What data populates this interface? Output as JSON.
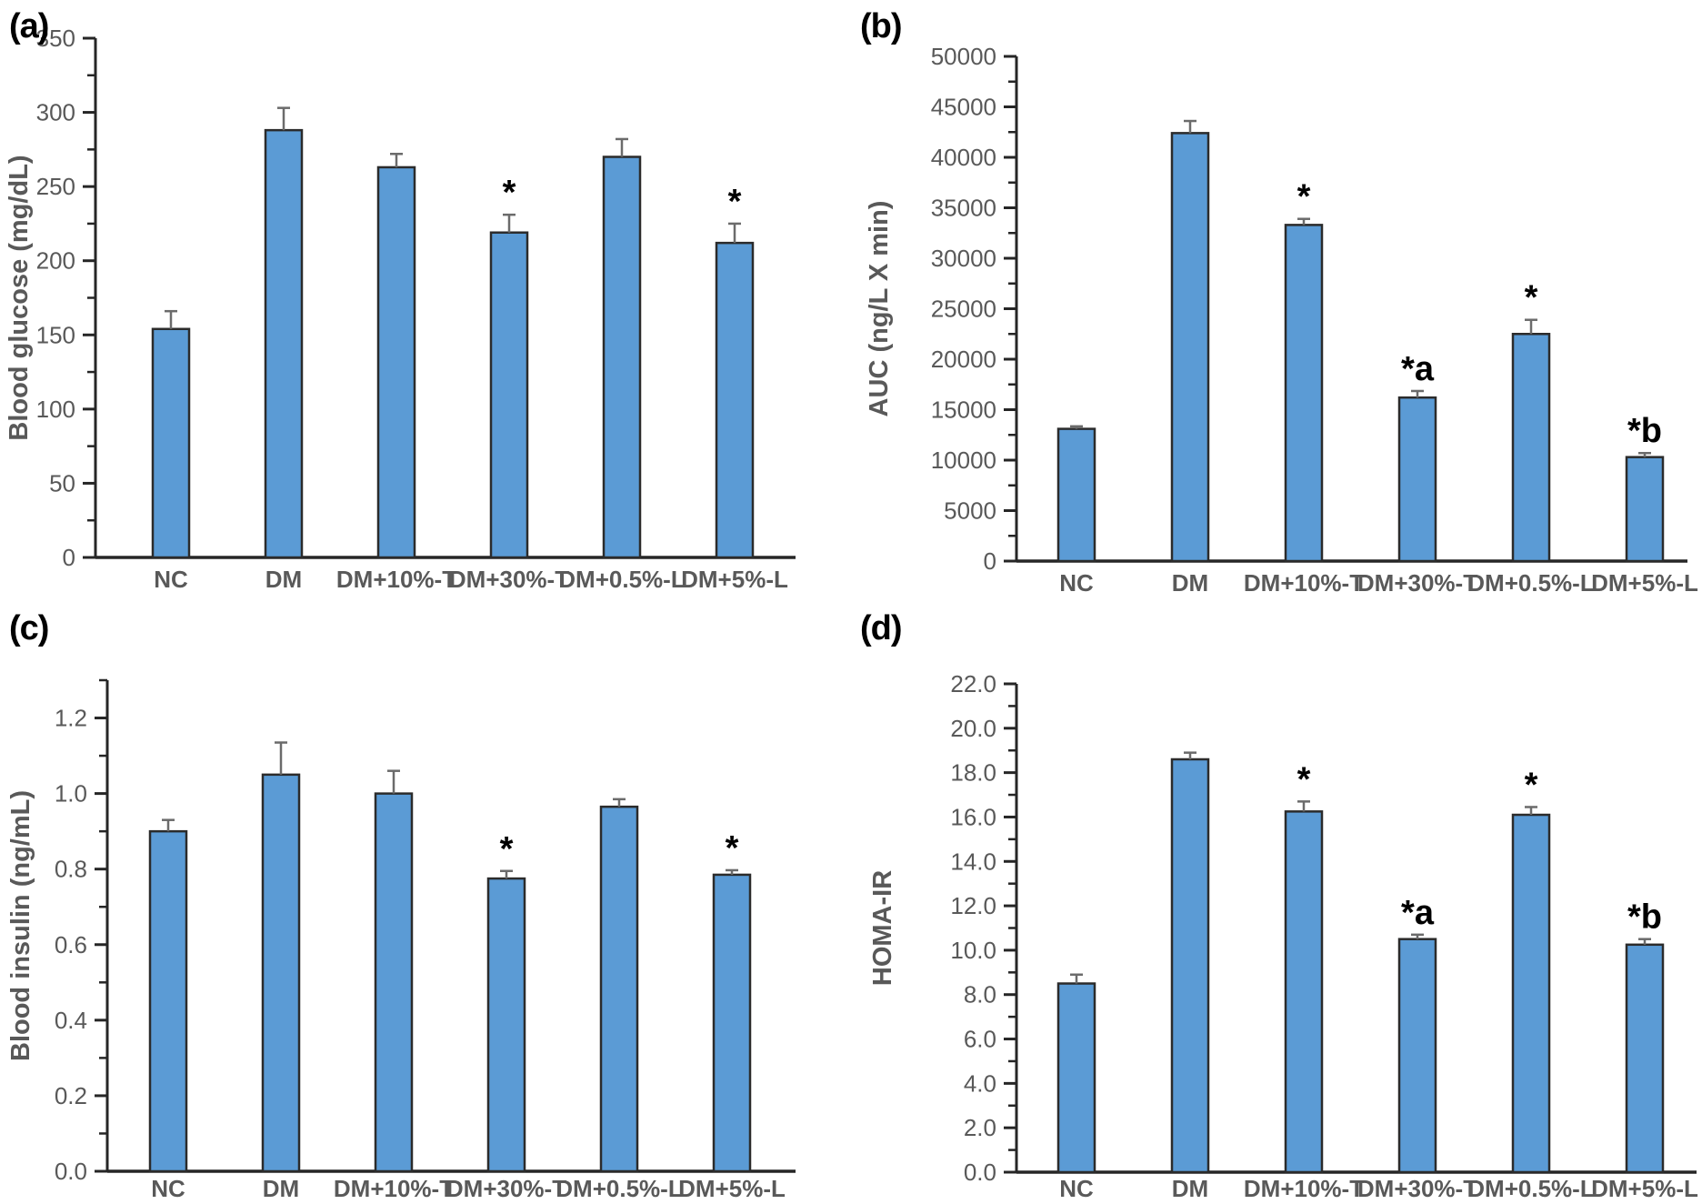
{
  "figure": {
    "background": "#ffffff",
    "bar_fill": "#5B9BD5",
    "bar_border": "#2b2b2b",
    "error_bar_color": "#6b6b6b",
    "axis_color": "#262626",
    "tick_label_color": "#595959",
    "x_label_color": "#595959",
    "sig_marker_color": "#000000"
  },
  "chart_data": [
    {
      "type": "bar",
      "panel_label": "(a)",
      "title": "",
      "xlabel": "",
      "ylabel": "Blood glucose (mg/dL)",
      "categories": [
        "NC",
        "DM",
        "DM+10%-T",
        "DM+30%-T",
        "DM+0.5%-L",
        "DM+5%-L"
      ],
      "values": [
        154,
        288,
        263,
        219,
        270,
        212
      ],
      "errors": [
        12,
        15,
        9,
        12,
        12,
        13
      ],
      "sig_labels": [
        "",
        "",
        "",
        "*",
        "",
        "*"
      ],
      "ylim": [
        0,
        350
      ],
      "axis_top": 350,
      "ytick_step": 50,
      "minor_tick_step": 25,
      "tick_decimals": 0,
      "grid": false,
      "legend": "none"
    },
    {
      "type": "bar",
      "panel_label": "(b)",
      "title": "",
      "xlabel": "",
      "ylabel": "AUC (ng/L X min)",
      "categories": [
        "NC",
        "DM",
        "DM+10%-T",
        "DM+30%-T",
        "DM+0.5%-L",
        "DM+5%-L"
      ],
      "values": [
        13100,
        42400,
        33300,
        16200,
        22500,
        10300
      ],
      "errors": [
        250,
        1200,
        600,
        650,
        1400,
        400
      ],
      "sig_labels": [
        "",
        "",
        "*",
        "*a",
        "*",
        "*b"
      ],
      "ylim": [
        0,
        50000
      ],
      "axis_top": 50000,
      "ytick_step": 5000,
      "minor_tick_step": 2500,
      "tick_decimals": 0,
      "grid": false,
      "legend": "none"
    },
    {
      "type": "bar",
      "panel_label": "(c)",
      "title": "",
      "xlabel": "",
      "ylabel": "Blood insulin (ng/mL)",
      "categories": [
        "NC",
        "DM",
        "DM+10%-T",
        "DM+30%-T",
        "DM+0.5%-L",
        "DM+5%-L"
      ],
      "values": [
        0.9,
        1.05,
        1.0,
        0.775,
        0.965,
        0.785
      ],
      "errors": [
        0.03,
        0.085,
        0.06,
        0.02,
        0.02,
        0.012
      ],
      "sig_labels": [
        "",
        "",
        "",
        "*",
        "",
        "*"
      ],
      "ylim": [
        0,
        1.3
      ],
      "axis_top": 1.3,
      "ytick_step": 0.2,
      "minor_tick_step": 0.1,
      "tick_decimals": 1,
      "grid": false,
      "legend": "none"
    },
    {
      "type": "bar",
      "panel_label": "(d)",
      "title": "",
      "xlabel": "",
      "ylabel": "HOMA-IR",
      "categories": [
        "NC",
        "DM",
        "DM+10%-T",
        "DM+30%-T",
        "DM+0.5%-L",
        "DM+5%-L"
      ],
      "values": [
        8.5,
        18.6,
        16.25,
        10.5,
        16.1,
        10.25
      ],
      "errors": [
        0.4,
        0.3,
        0.45,
        0.2,
        0.35,
        0.25
      ],
      "sig_labels": [
        "",
        "",
        "*",
        "*a",
        "*",
        "*b"
      ],
      "ylim": [
        0,
        22
      ],
      "axis_top": 22,
      "ytick_step": 2,
      "minor_tick_step": 1,
      "tick_decimals": 1,
      "grid": false,
      "legend": "none"
    }
  ]
}
